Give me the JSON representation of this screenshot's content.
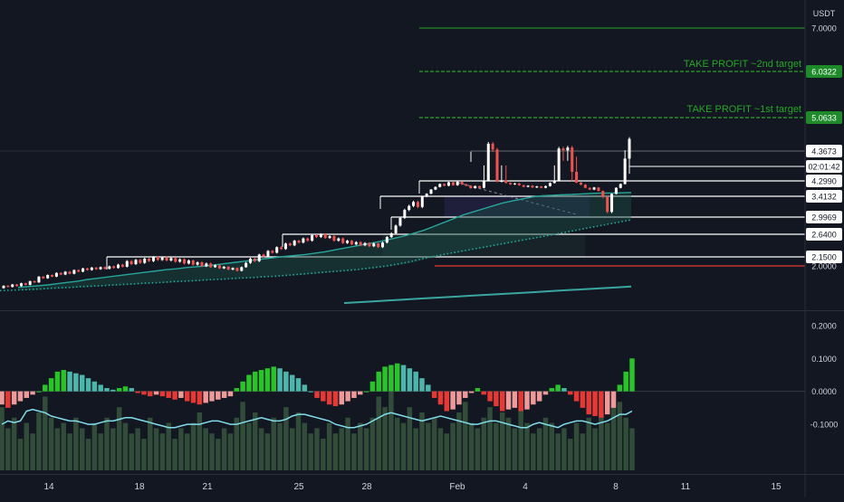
{
  "axis_unit": "USDT",
  "colors": {
    "background": "#131722",
    "bull": "#ffffff",
    "bear": "#ef5350",
    "target_line": "#26a626",
    "target_label_bg": "#1e8a2a",
    "level_line": "#ffffff",
    "red_level": "#e53935",
    "ema_fast": "#26a69a",
    "ema_slow": "#26a69a",
    "ema_long": "#3aa6a0",
    "hist_up_strong": "#29c429",
    "hist_up_weak": "#4db6ac",
    "hist_down_strong": "#e53935",
    "hist_down_weak": "#ef9a9a",
    "volume_bar": "#3a5a40",
    "signal_line": "#80deea"
  },
  "labels": {
    "tp1": "TAKE PROFIT ~1st target",
    "tp2": "TAKE PROFIT ~2nd target",
    "countdown": "02:01:42"
  },
  "chart_data": [
    {
      "type": "candlestick",
      "y_ticks": [
        "7.0000",
        "6.0322",
        "5.0633",
        "4.3673",
        "4.2990",
        "3.4132",
        "2.9969",
        "2.6400",
        "2.1500",
        "2.0000"
      ],
      "x_ticks": [
        "14",
        "18",
        "21",
        "25",
        "28",
        "Feb",
        "4",
        "8",
        "11",
        "15"
      ],
      "levels": [
        {
          "value": 7.0,
          "label": "7.0000",
          "kind": "target"
        },
        {
          "value": 6.0322,
          "label": "6.0322",
          "kind": "tp2"
        },
        {
          "value": 5.0633,
          "label": "5.0633",
          "kind": "tp1"
        },
        {
          "value": 4.3673,
          "label": "4.3673",
          "kind": "support"
        },
        {
          "value": 4.299,
          "label": "4.2990",
          "kind": "support"
        },
        {
          "value": 3.4132,
          "label": "3.4132",
          "kind": "support"
        },
        {
          "value": 2.9969,
          "label": "2.9969",
          "kind": "support"
        },
        {
          "value": 2.64,
          "label": "2.6400",
          "kind": "support"
        },
        {
          "value": 2.15,
          "label": "2.1500",
          "kind": "support"
        },
        {
          "value": 2.0,
          "label": "2.0000",
          "kind": "red"
        }
      ],
      "candles": [
        [
          1.46,
          1.52
        ],
        [
          1.52,
          1.49
        ],
        [
          1.49,
          1.55
        ],
        [
          1.55,
          1.51
        ],
        [
          1.51,
          1.58
        ],
        [
          1.58,
          1.54
        ],
        [
          1.54,
          1.63
        ],
        [
          1.63,
          1.6
        ],
        [
          1.6,
          1.74
        ],
        [
          1.74,
          1.7
        ],
        [
          1.7,
          1.78
        ],
        [
          1.78,
          1.74
        ],
        [
          1.74,
          1.83
        ],
        [
          1.83,
          1.79
        ],
        [
          1.79,
          1.86
        ],
        [
          1.86,
          1.81
        ],
        [
          1.81,
          1.9
        ],
        [
          1.9,
          1.86
        ],
        [
          1.86,
          1.94
        ],
        [
          1.94,
          1.9
        ],
        [
          1.9,
          1.96
        ],
        [
          1.96,
          1.92
        ],
        [
          1.92,
          1.97
        ],
        [
          1.97,
          1.93
        ],
        [
          1.93,
          1.99
        ],
        [
          1.99,
          1.95
        ],
        [
          1.95,
          2.02
        ],
        [
          2.02,
          1.98
        ],
        [
          1.98,
          2.08
        ],
        [
          2.08,
          2.03
        ],
        [
          2.03,
          2.1
        ],
        [
          2.1,
          2.05
        ],
        [
          2.05,
          2.12
        ],
        [
          2.12,
          2.08
        ],
        [
          2.08,
          2.15
        ],
        [
          2.15,
          2.1
        ],
        [
          2.1,
          2.14
        ],
        [
          2.14,
          2.09
        ],
        [
          2.09,
          2.13
        ],
        [
          2.13,
          2.07
        ],
        [
          2.07,
          2.11
        ],
        [
          2.11,
          2.04
        ],
        [
          2.04,
          2.09
        ],
        [
          2.09,
          2.02
        ],
        [
          2.02,
          2.06
        ],
        [
          2.06,
          1.99
        ],
        [
          1.99,
          2.04
        ],
        [
          2.04,
          1.97
        ],
        [
          1.97,
          2.01
        ],
        [
          2.01,
          1.94
        ],
        [
          1.94,
          1.98
        ],
        [
          1.98,
          1.91
        ],
        [
          1.91,
          1.95
        ],
        [
          1.95,
          1.88
        ],
        [
          1.88,
          1.97
        ],
        [
          1.97,
          2.05
        ],
        [
          2.05,
          2.12
        ],
        [
          2.12,
          2.08
        ],
        [
          2.08,
          2.2
        ],
        [
          2.2,
          2.16
        ],
        [
          2.16,
          2.28
        ],
        [
          2.28,
          2.24
        ],
        [
          2.24,
          2.36
        ],
        [
          2.36,
          2.32
        ],
        [
          2.32,
          2.44
        ],
        [
          2.44,
          2.4
        ],
        [
          2.4,
          2.5
        ],
        [
          2.5,
          2.46
        ],
        [
          2.46,
          2.55
        ],
        [
          2.55,
          2.5
        ],
        [
          2.5,
          2.62
        ],
        [
          2.62,
          2.58
        ],
        [
          2.58,
          2.64
        ],
        [
          2.64,
          2.56
        ],
        [
          2.56,
          2.6
        ],
        [
          2.6,
          2.5
        ],
        [
          2.5,
          2.55
        ],
        [
          2.55,
          2.45
        ],
        [
          2.45,
          2.5
        ],
        [
          2.5,
          2.42
        ],
        [
          2.42,
          2.47
        ],
        [
          2.47,
          2.4
        ],
        [
          2.4,
          2.45
        ],
        [
          2.45,
          2.38
        ],
        [
          2.38,
          2.44
        ],
        [
          2.44,
          2.36
        ],
        [
          2.36,
          2.46
        ],
        [
          2.46,
          2.58
        ],
        [
          2.58,
          2.66
        ],
        [
          2.66,
          2.82
        ],
        [
          2.82,
          2.98
        ],
        [
          2.98,
          3.14
        ],
        [
          3.14,
          3.22
        ],
        [
          3.22,
          3.3
        ],
        [
          3.3,
          3.2
        ],
        [
          3.2,
          3.42
        ],
        [
          3.42,
          3.56
        ],
        [
          3.56,
          3.8
        ],
        [
          3.8,
          3.95
        ],
        [
          3.95,
          4.12
        ],
        [
          4.12,
          4.02
        ],
        [
          4.02,
          4.22
        ],
        [
          4.22,
          4.05
        ],
        [
          4.05,
          4.25
        ],
        [
          4.25,
          4.1
        ],
        [
          4.1,
          4.02
        ],
        [
          4.02,
          3.88
        ],
        [
          3.88,
          4.0
        ],
        [
          4.0,
          3.9
        ],
        [
          3.9,
          4.3
        ],
        [
          4.3,
          4.52
        ],
        [
          4.52,
          4.4
        ],
        [
          4.4,
          4.25
        ],
        [
          4.25,
          4.3
        ],
        [
          4.3,
          4.18
        ],
        [
          4.18,
          4.1
        ],
        [
          4.1,
          4.15
        ],
        [
          4.15,
          4.05
        ],
        [
          4.05,
          3.96
        ],
        [
          3.96,
          4.02
        ],
        [
          4.02,
          3.92
        ],
        [
          3.92,
          3.98
        ],
        [
          3.98,
          3.9
        ],
        [
          3.9,
          4.0
        ],
        [
          4.0,
          4.18
        ],
        [
          4.18,
          4.3
        ],
        [
          4.3,
          4.42
        ],
        [
          4.42,
          4.38
        ],
        [
          4.38,
          4.44
        ],
        [
          4.44,
          4.32
        ],
        [
          4.32,
          4.2
        ],
        [
          4.2,
          4.08
        ],
        [
          4.08,
          3.9
        ],
        [
          3.9,
          3.8
        ],
        [
          3.8,
          3.92
        ],
        [
          3.92,
          3.72
        ],
        [
          3.72,
          3.4
        ],
        [
          3.4,
          3.1
        ],
        [
          3.1,
          3.55
        ],
        [
          3.55,
          3.9
        ],
        [
          3.9,
          4.12
        ],
        [
          4.12,
          4.35
        ],
        [
          4.35,
          4.62
        ]
      ],
      "ema_fast": [
        1.48,
        1.5,
        1.52,
        1.54,
        1.57,
        1.6,
        1.63,
        1.67,
        1.7,
        1.73,
        1.76,
        1.79,
        1.82,
        1.85,
        1.88,
        1.91,
        1.93,
        1.96,
        1.98,
        2.0,
        2.02,
        2.04,
        2.06,
        2.08,
        2.1,
        2.12,
        2.14,
        2.16,
        2.18,
        2.2,
        2.23,
        2.26,
        2.3,
        2.34,
        2.38,
        2.42,
        2.46,
        2.5,
        2.55,
        2.6,
        2.66,
        2.72,
        2.8,
        2.88,
        2.96,
        3.04,
        3.1,
        3.16,
        3.22,
        3.28,
        3.32,
        3.36,
        3.4,
        3.44,
        3.47,
        3.5,
        3.52,
        3.55,
        3.58,
        3.6,
        3.6,
        3.61,
        3.63
      ],
      "ema_slow": [
        1.4,
        1.41,
        1.42,
        1.43,
        1.44,
        1.46,
        1.47,
        1.48,
        1.5,
        1.51,
        1.52,
        1.54,
        1.55,
        1.56,
        1.58,
        1.59,
        1.6,
        1.62,
        1.63,
        1.64,
        1.66,
        1.67,
        1.68,
        1.7,
        1.71,
        1.72,
        1.74,
        1.75,
        1.77,
        1.79,
        1.81,
        1.83,
        1.85,
        1.87,
        1.89,
        1.91,
        1.94,
        1.97,
        2.0,
        2.03,
        2.06,
        2.1,
        2.14,
        2.18,
        2.22,
        2.26,
        2.3,
        2.34,
        2.38,
        2.42,
        2.46,
        2.5,
        2.54,
        2.58,
        2.62,
        2.66,
        2.7,
        2.74,
        2.78,
        2.82,
        2.86,
        2.9,
        2.94
      ],
      "ema_long": [
        1.1,
        1.12,
        1.14,
        1.16,
        1.18,
        1.2,
        1.22,
        1.24,
        1.26,
        1.28,
        1.3,
        1.32,
        1.34,
        1.36,
        1.38,
        1.4,
        1.42,
        1.44,
        1.46,
        1.48,
        1.5
      ]
    },
    {
      "type": "bar",
      "y_ticks": [
        "0.2000",
        "0.1000",
        "0.0000",
        "-0.1000"
      ],
      "ylim": [
        -0.24,
        0.23
      ],
      "histogram": [
        -0.04,
        -0.05,
        -0.04,
        -0.03,
        -0.02,
        -0.01,
        0.0,
        0.02,
        0.04,
        0.06,
        0.065,
        0.06,
        0.055,
        0.05,
        0.04,
        0.03,
        0.02,
        0.01,
        0.005,
        0.01,
        0.015,
        0.01,
        -0.005,
        -0.01,
        -0.015,
        -0.01,
        -0.015,
        -0.02,
        -0.025,
        -0.02,
        -0.03,
        -0.035,
        -0.04,
        -0.035,
        -0.03,
        -0.025,
        -0.02,
        -0.015,
        0.01,
        0.03,
        0.05,
        0.06,
        0.065,
        0.07,
        0.075,
        0.07,
        0.06,
        0.05,
        0.04,
        0.02,
        0.0,
        -0.02,
        -0.03,
        -0.04,
        -0.045,
        -0.04,
        -0.03,
        -0.02,
        -0.01,
        0.0,
        0.03,
        0.06,
        0.075,
        0.08,
        0.085,
        0.08,
        0.07,
        0.06,
        0.04,
        0.02,
        -0.02,
        -0.04,
        -0.06,
        -0.055,
        -0.04,
        -0.02,
        -0.005,
        0.01,
        -0.01,
        -0.03,
        -0.045,
        -0.06,
        -0.055,
        -0.05,
        -0.06,
        -0.055,
        -0.04,
        -0.03,
        -0.01,
        0.01,
        0.02,
        0.01,
        -0.01,
        -0.03,
        -0.05,
        -0.07,
        -0.075,
        -0.08,
        -0.07,
        -0.05,
        0.02,
        0.06,
        0.1
      ],
      "volume": [
        0.12,
        0.08,
        0.1,
        0.06,
        0.09,
        0.07,
        0.11,
        0.14,
        0.1,
        0.08,
        0.09,
        0.07,
        0.1,
        0.08,
        0.06,
        0.09,
        0.07,
        0.1,
        0.08,
        0.12,
        0.09,
        0.07,
        0.08,
        0.06,
        0.1,
        0.08,
        0.07,
        0.09,
        0.06,
        0.08,
        0.07,
        0.09,
        0.11,
        0.08,
        0.07,
        0.06,
        0.08,
        0.07,
        0.1,
        0.13,
        0.09,
        0.11,
        0.08,
        0.07,
        0.1,
        0.09,
        0.12,
        0.08,
        0.11,
        0.09,
        0.07,
        0.08,
        0.06,
        0.09,
        0.07,
        0.08,
        0.1,
        0.07,
        0.09,
        0.08,
        0.1,
        0.14,
        0.12,
        0.18,
        0.1,
        0.09,
        0.12,
        0.08,
        0.11,
        0.09,
        0.1,
        0.08,
        0.07,
        0.09,
        0.11,
        0.13,
        0.09,
        0.08,
        0.1,
        0.12,
        0.09,
        0.11,
        0.1,
        0.08,
        0.12,
        0.09,
        0.07,
        0.08,
        0.1,
        0.09,
        0.07,
        0.08,
        0.06,
        0.09,
        0.07,
        0.1,
        0.08,
        0.11,
        0.09,
        0.12,
        0.13,
        0.1,
        0.08
      ],
      "signal": [
        -0.1,
        -0.09,
        -0.095,
        -0.09,
        -0.06,
        -0.055,
        -0.06,
        -0.065,
        -0.075,
        -0.08,
        -0.085,
        -0.09,
        -0.09,
        -0.095,
        -0.1,
        -0.1,
        -0.095,
        -0.09,
        -0.09,
        -0.085,
        -0.08,
        -0.08,
        -0.085,
        -0.09,
        -0.095,
        -0.1,
        -0.105,
        -0.11,
        -0.11,
        -0.105,
        -0.1,
        -0.1,
        -0.1,
        -0.095,
        -0.09,
        -0.09,
        -0.095,
        -0.1,
        -0.1,
        -0.095,
        -0.09,
        -0.085,
        -0.08,
        -0.085,
        -0.09,
        -0.09,
        -0.085,
        -0.075,
        -0.07,
        -0.07,
        -0.075,
        -0.08,
        -0.085,
        -0.09,
        -0.1,
        -0.105,
        -0.11,
        -0.11,
        -0.105,
        -0.1,
        -0.09,
        -0.08,
        -0.07,
        -0.065,
        -0.07,
        -0.075,
        -0.08,
        -0.085,
        -0.09,
        -0.085,
        -0.08,
        -0.075,
        -0.08,
        -0.085,
        -0.09,
        -0.095,
        -0.1,
        -0.1,
        -0.095,
        -0.09,
        -0.09,
        -0.095,
        -0.1,
        -0.105,
        -0.11,
        -0.11,
        -0.1,
        -0.095,
        -0.1,
        -0.105,
        -0.11,
        -0.1,
        -0.095,
        -0.09,
        -0.09,
        -0.095,
        -0.1,
        -0.095,
        -0.09,
        -0.08,
        -0.07,
        -0.07,
        -0.06
      ]
    }
  ]
}
